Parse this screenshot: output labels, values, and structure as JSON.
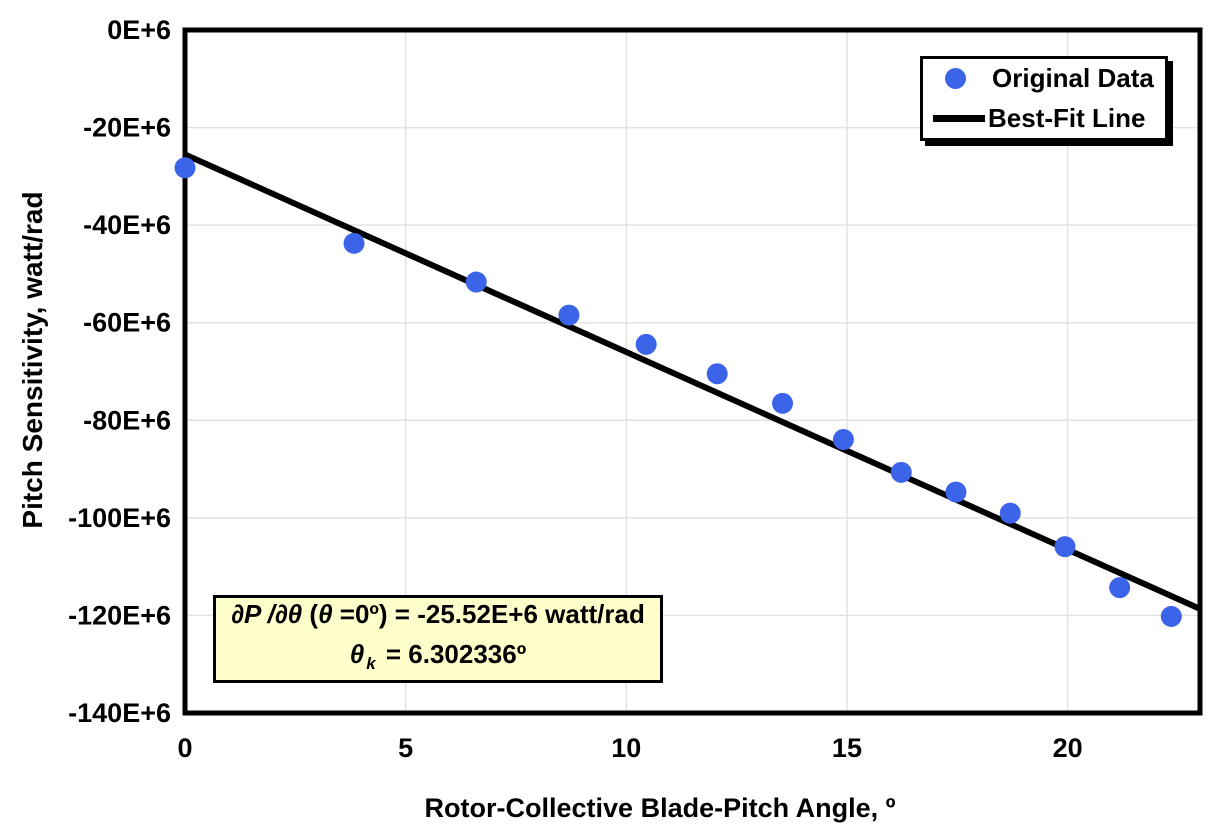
{
  "chart_data": {
    "type": "scatter",
    "title": "",
    "xlabel": "Rotor-Collective Blade-Pitch Angle, º",
    "ylabel": "Pitch Sensitivity, watt/rad",
    "xlim": [
      0,
      23
    ],
    "ylim_e6": [
      -140,
      0
    ],
    "x_ticks": [
      0,
      5,
      10,
      15,
      20
    ],
    "x_tick_labels": [
      "0",
      "5",
      "10",
      "15",
      "20"
    ],
    "y_ticks_e6": [
      0,
      -20,
      -40,
      -60,
      -80,
      -100,
      -120,
      -140
    ],
    "y_tick_labels": [
      "0E+6",
      "-20E+6",
      "-40E+6",
      "-60E+6",
      "-80E+6",
      "-100E+6",
      "-120E+6",
      "-140E+6"
    ],
    "grid": true,
    "legend_position": "top-right",
    "series": [
      {
        "name": "Original Data",
        "type": "scatter",
        "color": "#3B64E8",
        "x": [
          0,
          3.83,
          6.6,
          8.7,
          10.45,
          12.06,
          13.54,
          14.92,
          16.23,
          17.47,
          18.7,
          19.94,
          21.18,
          22.35
        ],
        "y_e6": [
          -28.24,
          -43.73,
          -51.66,
          -58.44,
          -64.44,
          -70.46,
          -76.53,
          -83.94,
          -90.67,
          -94.71,
          -99.04,
          -105.9,
          -114.3,
          -120.2
        ]
      },
      {
        "name": "Best-Fit Line",
        "type": "line",
        "color": "#000000",
        "fit": {
          "intercept_e6": -25.52,
          "theta_k_deg": 6.302336,
          "x_start": 0,
          "x_end": 23
        }
      }
    ]
  },
  "annotation": {
    "line1_deriv": "∂P /∂θ",
    "line1_open": " (",
    "line1_theta": "θ",
    "line1_rest": " =0º) = ",
    "line1_value": "-25.52E+6 watt/rad",
    "line2_theta": "θ",
    "line2_sub": "k",
    "line2_value": " = 6.302336º",
    "background": "#FFFFCC"
  },
  "colors": {
    "marker": "#3B64E8",
    "fit_line": "#000000",
    "grid": "#E2E2E2",
    "border": "#000000",
    "background": "#FFFFFF"
  }
}
